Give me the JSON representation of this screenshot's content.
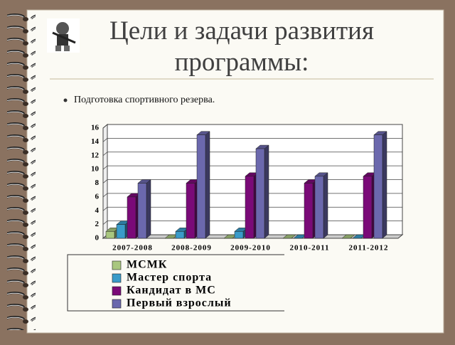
{
  "slide": {
    "title": "Цели и задачи развития программы:",
    "bullet": "Подготовка спортивного резерва."
  },
  "chart_data": {
    "type": "bar",
    "categories": [
      "2007-2008",
      "2008-2009",
      "2009-2010",
      "2010-2011",
      "2011-2012"
    ],
    "series": [
      {
        "name": "МСМК",
        "color": "#a9c77f",
        "values": [
          1,
          0,
          0,
          0,
          0
        ]
      },
      {
        "name": "Мастер спорта",
        "color": "#3a9bc9",
        "values": [
          2,
          1,
          1,
          0,
          0
        ]
      },
      {
        "name": "Кандидат в МС",
        "color": "#7a0a78",
        "values": [
          6,
          8,
          9,
          8,
          9
        ]
      },
      {
        "name": "Первый взрослый",
        "color": "#6b68ad",
        "values": [
          8,
          15,
          13,
          9,
          15
        ]
      }
    ],
    "ylim": [
      0,
      16
    ],
    "yticks": [
      0,
      2,
      4,
      6,
      8,
      10,
      12,
      14,
      16
    ],
    "grid": true,
    "legend": "bottom"
  }
}
